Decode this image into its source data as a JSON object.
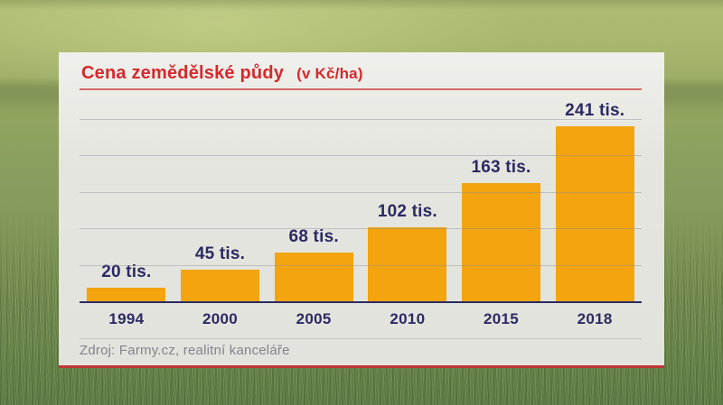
{
  "chart_data": {
    "type": "bar",
    "title": "Cena zemědělské půdy",
    "subtitle": "(v Kč/ha)",
    "categories": [
      "1994",
      "2000",
      "2005",
      "2010",
      "2015",
      "2018"
    ],
    "values": [
      20,
      45,
      68,
      102,
      163,
      241
    ],
    "value_labels": [
      "20 tis.",
      "45 tis.",
      "68 tis.",
      "102 tis.",
      "163 tis.",
      "241 tis."
    ],
    "unit": "tis. Kč/ha",
    "ylim": [
      0,
      285
    ],
    "gridline_step": 50,
    "grid": "horizontal-faint",
    "legend": "none",
    "source": "Zdroj: Farmy.cz, realitní kanceláře"
  },
  "colors": {
    "bar_orange": "#f3a40e",
    "label_navy": "#2b2a63",
    "title_red": "#d7282d",
    "title_rule_red": "#d4696a",
    "panel_bottom_border_red": "#c23538",
    "panel_background": "#e9eae3",
    "grid_line_gray": "#8e8e9a",
    "source_gray": "#83838d",
    "background_green_top": "#aebc74",
    "background_green_mid": "#8ba05f",
    "background_green_bottom": "#64804a"
  }
}
